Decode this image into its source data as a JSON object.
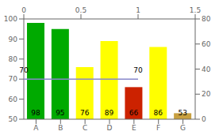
{
  "chart_data": {
    "type": "bar",
    "categories": [
      "A",
      "B",
      "C",
      "D",
      "E",
      "F",
      "G"
    ],
    "ylim": [
      50,
      100
    ],
    "yticks": [
      50,
      60,
      70,
      80,
      90,
      100
    ],
    "y2lim": [
      0,
      80
    ],
    "y2ticks": [
      0,
      20,
      40,
      60,
      80
    ],
    "x2lim": [
      0,
      1.5
    ],
    "x2ticks": [
      0,
      0.5,
      1,
      1.5
    ],
    "series": [
      {
        "type": "bar",
        "values": [
          98,
          95,
          76,
          89,
          66,
          86,
          53
        ],
        "colors": [
          "#00aa00",
          "#00aa00",
          "#ffff00",
          "#ffff00",
          "#cc2200",
          "#ffff00",
          "#c8a040"
        ],
        "data_labels": true
      },
      {
        "type": "line",
        "axis": "x2",
        "x": [
          0,
          1
        ],
        "values": [
          70,
          70
        ],
        "color": "#8888cc",
        "data_labels": true
      }
    ]
  }
}
